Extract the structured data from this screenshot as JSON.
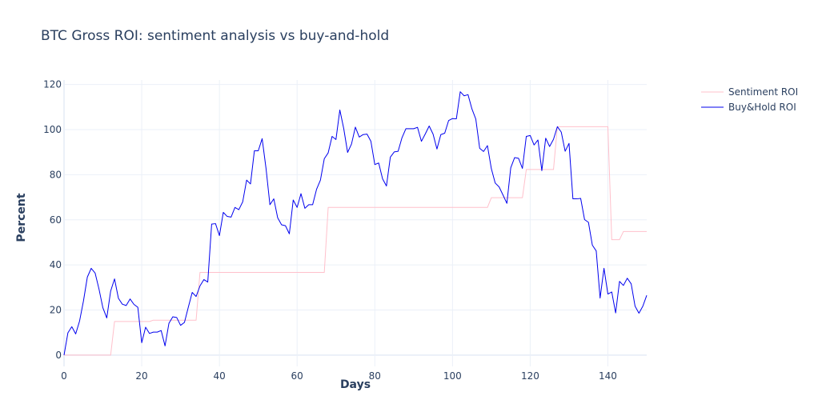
{
  "chart_data": {
    "type": "line",
    "title": "BTC Gross ROI: sentiment analysis vs buy-and-hold",
    "xlabel": "Days",
    "ylabel": "Percent",
    "xlim": [
      0,
      150
    ],
    "ylim": [
      -5,
      122
    ],
    "xticks": [
      0,
      20,
      40,
      60,
      80,
      100,
      120,
      140
    ],
    "yticks": [
      0,
      20,
      40,
      60,
      80,
      100,
      120
    ],
    "grid": true,
    "legend_position": "top-right",
    "series": [
      {
        "name": "Sentiment ROI",
        "color": "#ffc0cb",
        "step": true,
        "points": [
          [
            0,
            0
          ],
          [
            12,
            0
          ],
          [
            13,
            14.9
          ],
          [
            22,
            14.9
          ],
          [
            23,
            15.5
          ],
          [
            34,
            15.5
          ],
          [
            35,
            36.7
          ],
          [
            67,
            36.7
          ],
          [
            68,
            65.5
          ],
          [
            109,
            65.5
          ],
          [
            110,
            69.8
          ],
          [
            118,
            69.8
          ],
          [
            119,
            82.3
          ],
          [
            126,
            82.3
          ],
          [
            127,
            101.3
          ],
          [
            140,
            101.3
          ],
          [
            141,
            51.2
          ],
          [
            143,
            51.2
          ],
          [
            144,
            54.8
          ],
          [
            150,
            54.8
          ]
        ]
      },
      {
        "name": "Buy&Hold ROI",
        "color": "#0000ee",
        "step": false,
        "x": [
          0,
          1,
          2,
          3,
          4,
          5,
          6,
          7,
          8,
          9,
          10,
          11,
          12,
          13,
          14,
          15,
          16,
          17,
          18,
          19,
          20,
          21,
          22,
          23,
          24,
          25,
          26,
          27,
          28,
          29,
          30,
          31,
          32,
          33,
          34,
          35,
          36,
          37,
          38,
          39,
          40,
          41,
          42,
          43,
          44,
          45,
          46,
          47,
          48,
          49,
          50,
          51,
          52,
          53,
          54,
          55,
          56,
          57,
          58,
          59,
          60,
          61,
          62,
          63,
          64,
          65,
          66,
          67,
          68,
          69,
          70,
          71,
          72,
          73,
          74,
          75,
          76,
          77,
          78,
          79,
          80,
          81,
          82,
          83,
          84,
          85,
          86,
          87,
          88,
          89,
          90,
          91,
          92,
          93,
          94,
          95,
          96,
          97,
          98,
          99,
          100,
          101,
          102,
          103,
          104,
          105,
          106,
          107,
          108,
          109,
          110,
          111,
          112,
          113,
          114,
          115,
          116,
          117,
          118,
          119,
          120,
          121,
          122,
          123,
          124,
          125,
          126,
          127,
          128,
          129,
          130,
          131,
          132,
          133,
          134,
          135,
          136,
          137,
          138,
          139,
          140,
          141,
          142,
          143,
          144,
          145,
          146,
          147,
          148,
          149,
          150
        ],
        "values": [
          0,
          9.9,
          12.6,
          9.4,
          15.1,
          24,
          34.6,
          38.5,
          36.4,
          29.3,
          21,
          16.5,
          28.4,
          33.8,
          25.2,
          22.6,
          22,
          24.9,
          22.5,
          21.2,
          5.5,
          12.4,
          9.6,
          10.2,
          10.2,
          10.9,
          4.1,
          14.1,
          17,
          16.7,
          13.2,
          14.5,
          21.3,
          27.8,
          26,
          30.7,
          33.5,
          32.4,
          58.1,
          58.3,
          53,
          63.3,
          61.5,
          61.2,
          65.5,
          64.5,
          68,
          77.6,
          75.9,
          90.6,
          90.6,
          96,
          82.8,
          66.7,
          69.3,
          60.9,
          57.8,
          57.4,
          53.8,
          68.8,
          65.5,
          71.6,
          65.1,
          66.7,
          66.7,
          73.5,
          77.6,
          87.1,
          89.7,
          97,
          95.6,
          108.7,
          100.5,
          89.9,
          93.6,
          101.1,
          96.7,
          97.8,
          98,
          94.8,
          84.5,
          85.2,
          78.2,
          75,
          87.8,
          90.1,
          90.4,
          96.4,
          100.4,
          100.4,
          100.4,
          101,
          94.8,
          98.1,
          101.6,
          98,
          91.4,
          97.8,
          98.4,
          104,
          104.9,
          104.8,
          116.8,
          115,
          115.5,
          109.2,
          104.7,
          91.7,
          90.3,
          92.9,
          82.7,
          76.3,
          74.6,
          71,
          67.3,
          83.1,
          87.6,
          87.3,
          82.8,
          97,
          97.4,
          93.2,
          95.4,
          81.8,
          96.2,
          92.5,
          95.7,
          101.3,
          98.9,
          90.4,
          93.9,
          69.3,
          69.3,
          69.5,
          60.1,
          58.9,
          48.8,
          46.2,
          25.3,
          38.5,
          27.1,
          28,
          18.7,
          32.7,
          30.9,
          34.1,
          31.6,
          21.7,
          18.6,
          21.7,
          26.5
        ]
      }
    ]
  }
}
